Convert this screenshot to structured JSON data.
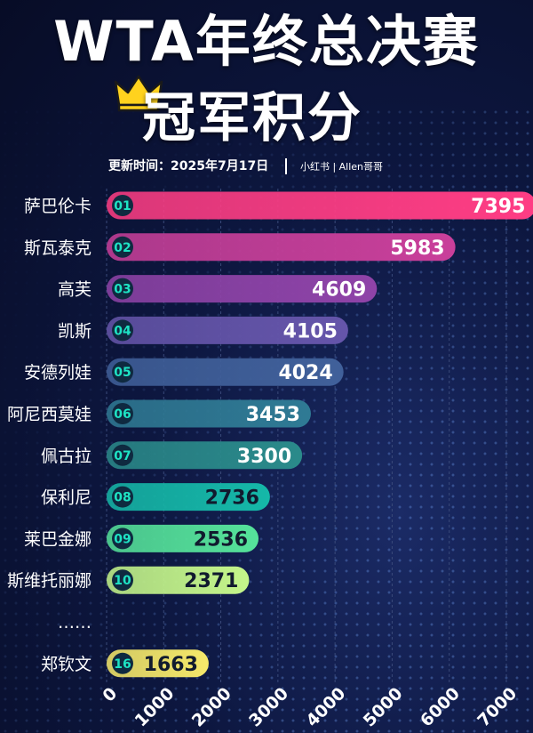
{
  "header": {
    "title_line1": "WTA年终总决赛",
    "title_line2": "冠军积分",
    "update_label": "更新时间：2025年7月17日",
    "source_label": "小红书 | Allen哥哥"
  },
  "icons": {
    "crown": "crown-icon"
  },
  "colors": {
    "grid": "#3a4a7a",
    "rank_badge_bg": "#0f2a40",
    "rank_badge_text": "#1ee3c4",
    "gradient": [
      "#ff3d84",
      "#c93f9a",
      "#8f43a8",
      "#6555aa",
      "#40609a",
      "#2f7a94",
      "#2a8a8a",
      "#15b8a8",
      "#55e29a",
      "#c4f58a",
      "#f5e86a"
    ]
  },
  "chart_data": {
    "type": "bar",
    "orientation": "horizontal",
    "categories": [
      "萨巴伦卡",
      "斯瓦泰克",
      "高芙",
      "凯斯",
      "安德列娃",
      "阿尼西莫娃",
      "佩古拉",
      "保利尼",
      "莱巴金娜",
      "斯维托丽娜",
      "……",
      "郑钦文"
    ],
    "ranks": [
      "01",
      "02",
      "03",
      "04",
      "05",
      "06",
      "07",
      "08",
      "09",
      "10",
      null,
      "16"
    ],
    "values": [
      7395,
      5983,
      4609,
      4105,
      4024,
      3453,
      3300,
      2736,
      2536,
      2371,
      null,
      1663
    ],
    "xlim": [
      0,
      7000
    ],
    "xticks": [
      0,
      1000,
      2000,
      3000,
      4000,
      5000,
      6000,
      7000
    ],
    "grid": true
  }
}
